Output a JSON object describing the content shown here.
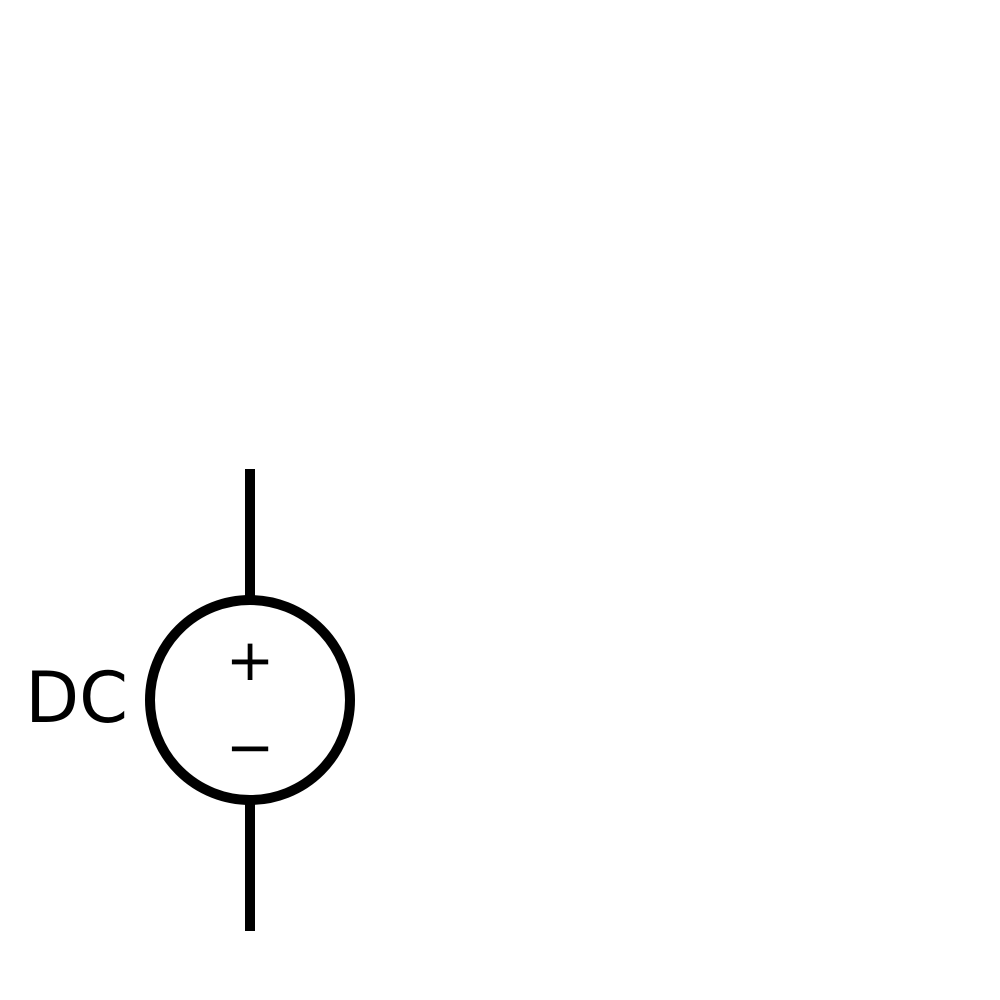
{
  "diagram": {
    "label": "DC",
    "positive_terminal_symbol": "+",
    "negative_terminal_symbol": "−",
    "stroke_color": "#000000",
    "background_color": "#ffffff"
  }
}
